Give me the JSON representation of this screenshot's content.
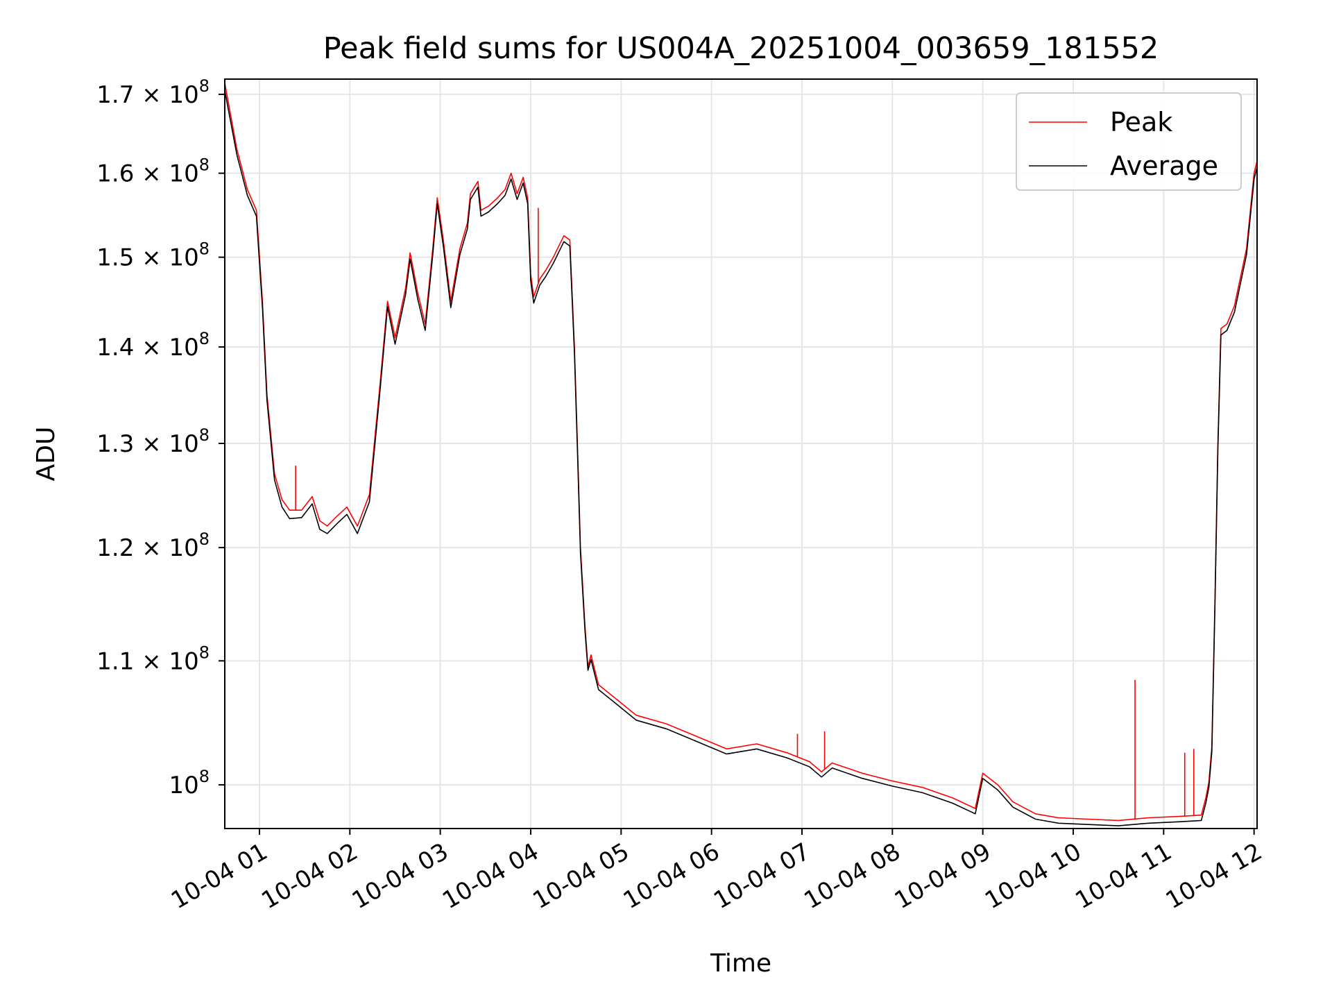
{
  "chart_data": {
    "type": "line",
    "title": "Peak field sums for US004A_20251004_003659_181552",
    "xlabel": "Time",
    "ylabel": "ADU",
    "y_scale": "log",
    "ylim": [
      96700000,
      172000000
    ],
    "xlim": [
      "2025-10-04 00:37",
      "2025-10-04 12:02"
    ],
    "grid": true,
    "legend_position": "top-right",
    "x_ticks": [
      {
        "label": "10-04 01",
        "t": "2025-10-04 01:00"
      },
      {
        "label": "10-04 02",
        "t": "2025-10-04 02:00"
      },
      {
        "label": "10-04 03",
        "t": "2025-10-04 03:00"
      },
      {
        "label": "10-04 04",
        "t": "2025-10-04 04:00"
      },
      {
        "label": "10-04 05",
        "t": "2025-10-04 05:00"
      },
      {
        "label": "10-04 06",
        "t": "2025-10-04 06:00"
      },
      {
        "label": "10-04 07",
        "t": "2025-10-04 07:00"
      },
      {
        "label": "10-04 08",
        "t": "2025-10-04 08:00"
      },
      {
        "label": "10-04 09",
        "t": "2025-10-04 09:00"
      },
      {
        "label": "10-04 10",
        "t": "2025-10-04 10:00"
      },
      {
        "label": "10-04 11",
        "t": "2025-10-04 11:00"
      },
      {
        "label": "10-04 12",
        "t": "2025-10-04 12:00"
      }
    ],
    "y_ticks": [
      {
        "mantissa": "1.7 × 10",
        "exp": "8",
        "value": 170000000
      },
      {
        "mantissa": "1.6 × 10",
        "exp": "8",
        "value": 160000000
      },
      {
        "mantissa": "1.5 × 10",
        "exp": "8",
        "value": 150000000
      },
      {
        "mantissa": "1.4 × 10",
        "exp": "8",
        "value": 140000000
      },
      {
        "mantissa": "1.3 × 10",
        "exp": "8",
        "value": 130000000
      },
      {
        "mantissa": "1.2 × 10",
        "exp": "8",
        "value": 120000000
      },
      {
        "mantissa": "1.1 × 10",
        "exp": "8",
        "value": 110000000
      },
      {
        "mantissa": "10",
        "exp": "8",
        "value": 100000000
      }
    ],
    "series": [
      {
        "name": "Peak",
        "color": "#ff0000",
        "points": [
          [
            "2025-10-04 00:37",
            171500000
          ],
          [
            "2025-10-04 00:45",
            163000000
          ],
          [
            "2025-10-04 00:52",
            158000000
          ],
          [
            "2025-10-04 00:58",
            155500000
          ],
          [
            "2025-10-04 01:02",
            145000000
          ],
          [
            "2025-10-04 01:05",
            135000000
          ],
          [
            "2025-10-04 01:10",
            127000000
          ],
          [
            "2025-10-04 01:15",
            124500000
          ],
          [
            "2025-10-04 01:20",
            123500000
          ],
          [
            "2025-10-04 01:28",
            123500000
          ],
          [
            "2025-10-04 01:35",
            124800000
          ],
          [
            "2025-10-04 01:40",
            122500000
          ],
          [
            "2025-10-04 01:45",
            122000000
          ],
          [
            "2025-10-04 01:52",
            123000000
          ],
          [
            "2025-10-04 01:58",
            123800000
          ],
          [
            "2025-10-04 02:05",
            122000000
          ],
          [
            "2025-10-04 02:13",
            125000000
          ],
          [
            "2025-10-04 02:20",
            136000000
          ],
          [
            "2025-10-04 02:25",
            145000000
          ],
          [
            "2025-10-04 02:30",
            141000000
          ],
          [
            "2025-10-04 02:37",
            146500000
          ],
          [
            "2025-10-04 02:40",
            150500000
          ],
          [
            "2025-10-04 02:45",
            146000000
          ],
          [
            "2025-10-04 02:50",
            142500000
          ],
          [
            "2025-10-04 02:55",
            151000000
          ],
          [
            "2025-10-04 02:58",
            157000000
          ],
          [
            "2025-10-04 03:02",
            152000000
          ],
          [
            "2025-10-04 03:07",
            145000000
          ],
          [
            "2025-10-04 03:13",
            151000000
          ],
          [
            "2025-10-04 03:18",
            154000000
          ],
          [
            "2025-10-04 03:20",
            157500000
          ],
          [
            "2025-10-04 03:25",
            159000000
          ],
          [
            "2025-10-04 03:27",
            155500000
          ],
          [
            "2025-10-04 03:32",
            156000000
          ],
          [
            "2025-10-04 03:38",
            157000000
          ],
          [
            "2025-10-04 03:43",
            158000000
          ],
          [
            "2025-10-04 03:47",
            160000000
          ],
          [
            "2025-10-04 03:51",
            157500000
          ],
          [
            "2025-10-04 03:55",
            159500000
          ],
          [
            "2025-10-04 03:58",
            157000000
          ],
          [
            "2025-10-04 04:00",
            148000000
          ],
          [
            "2025-10-04 04:02",
            145500000
          ],
          [
            "2025-10-04 04:06",
            147500000
          ],
          [
            "2025-10-04 04:10",
            148500000
          ],
          [
            "2025-10-04 04:15",
            150000000
          ],
          [
            "2025-10-04 04:22",
            152500000
          ],
          [
            "2025-10-04 04:26",
            152000000
          ],
          [
            "2025-10-04 04:29",
            140000000
          ],
          [
            "2025-10-04 04:31",
            130000000
          ],
          [
            "2025-10-04 04:33",
            120000000
          ],
          [
            "2025-10-04 04:36",
            113000000
          ],
          [
            "2025-10-04 04:38",
            109500000
          ],
          [
            "2025-10-04 04:40",
            110500000
          ],
          [
            "2025-10-04 04:45",
            108000000
          ],
          [
            "2025-10-04 04:55",
            107000000
          ],
          [
            "2025-10-04 05:10",
            105500000
          ],
          [
            "2025-10-04 05:30",
            104800000
          ],
          [
            "2025-10-04 05:50",
            103800000
          ],
          [
            "2025-10-04 06:10",
            102800000
          ],
          [
            "2025-10-04 06:30",
            103200000
          ],
          [
            "2025-10-04 06:50",
            102500000
          ],
          [
            "2025-10-04 07:05",
            101800000
          ],
          [
            "2025-10-04 07:13",
            101000000
          ],
          [
            "2025-10-04 07:20",
            101700000
          ],
          [
            "2025-10-04 07:40",
            100900000
          ],
          [
            "2025-10-04 08:00",
            100300000
          ],
          [
            "2025-10-04 08:20",
            99800000
          ],
          [
            "2025-10-04 08:40",
            99000000
          ],
          [
            "2025-10-04 08:55",
            98200000
          ],
          [
            "2025-10-04 09:00",
            100900000
          ],
          [
            "2025-10-04 09:10",
            100000000
          ],
          [
            "2025-10-04 09:20",
            98700000
          ],
          [
            "2025-10-04 09:35",
            97800000
          ],
          [
            "2025-10-04 09:50",
            97500000
          ],
          [
            "2025-10-04 10:10",
            97400000
          ],
          [
            "2025-10-04 10:30",
            97300000
          ],
          [
            "2025-10-04 10:50",
            97500000
          ],
          [
            "2025-10-04 11:10",
            97600000
          ],
          [
            "2025-10-04 11:25",
            97700000
          ],
          [
            "2025-10-04 11:28",
            99000000
          ],
          [
            "2025-10-04 11:30",
            100200000
          ],
          [
            "2025-10-04 11:32",
            103000000
          ],
          [
            "2025-10-04 11:34",
            115000000
          ],
          [
            "2025-10-04 11:36",
            130000000
          ],
          [
            "2025-10-04 11:38",
            142000000
          ],
          [
            "2025-10-04 11:42",
            142500000
          ],
          [
            "2025-10-04 11:47",
            144500000
          ],
          [
            "2025-10-04 11:55",
            151000000
          ],
          [
            "2025-10-04 12:00",
            160000000
          ],
          [
            "2025-10-04 12:02",
            161500000
          ]
        ]
      },
      {
        "name": "Average",
        "color": "#000000",
        "points": [
          [
            "2025-10-04 00:37",
            170500000
          ],
          [
            "2025-10-04 00:45",
            162300000
          ],
          [
            "2025-10-04 00:52",
            157300000
          ],
          [
            "2025-10-04 00:58",
            154800000
          ],
          [
            "2025-10-04 01:02",
            144300000
          ],
          [
            "2025-10-04 01:05",
            134400000
          ],
          [
            "2025-10-04 01:10",
            126400000
          ],
          [
            "2025-10-04 01:15",
            123800000
          ],
          [
            "2025-10-04 01:20",
            122700000
          ],
          [
            "2025-10-04 01:28",
            122800000
          ],
          [
            "2025-10-04 01:35",
            124100000
          ],
          [
            "2025-10-04 01:40",
            121700000
          ],
          [
            "2025-10-04 01:45",
            121300000
          ],
          [
            "2025-10-04 01:52",
            122300000
          ],
          [
            "2025-10-04 01:58",
            123100000
          ],
          [
            "2025-10-04 02:05",
            121300000
          ],
          [
            "2025-10-04 02:13",
            124300000
          ],
          [
            "2025-10-04 02:20",
            135300000
          ],
          [
            "2025-10-04 02:25",
            144400000
          ],
          [
            "2025-10-04 02:30",
            140300000
          ],
          [
            "2025-10-04 02:37",
            145800000
          ],
          [
            "2025-10-04 02:40",
            149800000
          ],
          [
            "2025-10-04 02:45",
            145300000
          ],
          [
            "2025-10-04 02:50",
            141800000
          ],
          [
            "2025-10-04 02:55",
            150300000
          ],
          [
            "2025-10-04 02:58",
            156300000
          ],
          [
            "2025-10-04 03:02",
            151300000
          ],
          [
            "2025-10-04 03:07",
            144300000
          ],
          [
            "2025-10-04 03:13",
            150300000
          ],
          [
            "2025-10-04 03:18",
            153300000
          ],
          [
            "2025-10-04 03:20",
            156800000
          ],
          [
            "2025-10-04 03:25",
            158300000
          ],
          [
            "2025-10-04 03:27",
            154800000
          ],
          [
            "2025-10-04 03:32",
            155300000
          ],
          [
            "2025-10-04 03:38",
            156300000
          ],
          [
            "2025-10-04 03:43",
            157300000
          ],
          [
            "2025-10-04 03:47",
            159300000
          ],
          [
            "2025-10-04 03:51",
            156800000
          ],
          [
            "2025-10-04 03:55",
            158800000
          ],
          [
            "2025-10-04 03:58",
            156300000
          ],
          [
            "2025-10-04 04:00",
            147300000
          ],
          [
            "2025-10-04 04:02",
            144800000
          ],
          [
            "2025-10-04 04:06",
            146800000
          ],
          [
            "2025-10-04 04:10",
            147800000
          ],
          [
            "2025-10-04 04:15",
            149300000
          ],
          [
            "2025-10-04 04:22",
            151800000
          ],
          [
            "2025-10-04 04:26",
            151300000
          ],
          [
            "2025-10-04 04:29",
            139400000
          ],
          [
            "2025-10-04 04:31",
            129400000
          ],
          [
            "2025-10-04 04:33",
            119500000
          ],
          [
            "2025-10-04 04:36",
            112600000
          ],
          [
            "2025-10-04 04:38",
            109200000
          ],
          [
            "2025-10-04 04:40",
            110100000
          ],
          [
            "2025-10-04 04:45",
            107600000
          ],
          [
            "2025-10-04 04:55",
            106600000
          ],
          [
            "2025-10-04 05:10",
            105100000
          ],
          [
            "2025-10-04 05:30",
            104400000
          ],
          [
            "2025-10-04 05:50",
            103400000
          ],
          [
            "2025-10-04 06:10",
            102400000
          ],
          [
            "2025-10-04 06:30",
            102800000
          ],
          [
            "2025-10-04 06:50",
            102100000
          ],
          [
            "2025-10-04 07:05",
            101400000
          ],
          [
            "2025-10-04 07:13",
            100600000
          ],
          [
            "2025-10-04 07:20",
            101300000
          ],
          [
            "2025-10-04 07:40",
            100500000
          ],
          [
            "2025-10-04 08:00",
            99900000
          ],
          [
            "2025-10-04 08:20",
            99400000
          ],
          [
            "2025-10-04 08:40",
            98600000
          ],
          [
            "2025-10-04 08:55",
            97800000
          ],
          [
            "2025-10-04 09:00",
            100500000
          ],
          [
            "2025-10-04 09:10",
            99600000
          ],
          [
            "2025-10-04 09:20",
            98300000
          ],
          [
            "2025-10-04 09:35",
            97400000
          ],
          [
            "2025-10-04 09:50",
            97100000
          ],
          [
            "2025-10-04 10:10",
            97000000
          ],
          [
            "2025-10-04 10:30",
            96900000
          ],
          [
            "2025-10-04 10:50",
            97100000
          ],
          [
            "2025-10-04 11:10",
            97200000
          ],
          [
            "2025-10-04 11:25",
            97300000
          ],
          [
            "2025-10-04 11:28",
            98600000
          ],
          [
            "2025-10-04 11:30",
            99800000
          ],
          [
            "2025-10-04 11:32",
            102600000
          ],
          [
            "2025-10-04 11:34",
            114500000
          ],
          [
            "2025-10-04 11:36",
            129400000
          ],
          [
            "2025-10-04 11:38",
            141300000
          ],
          [
            "2025-10-04 11:42",
            141800000
          ],
          [
            "2025-10-04 11:47",
            143800000
          ],
          [
            "2025-10-04 11:55",
            150300000
          ],
          [
            "2025-10-04 12:00",
            159300000
          ],
          [
            "2025-10-04 12:02",
            160800000
          ]
        ]
      }
    ],
    "spikes": [
      {
        "t": "2025-10-04 01:24",
        "value": 127800000
      },
      {
        "t": "2025-10-04 04:05",
        "value": 155800000
      },
      {
        "t": "2025-10-04 06:57",
        "value": 104000000
      },
      {
        "t": "2025-10-04 07:15",
        "value": 104200000
      },
      {
        "t": "2025-10-04 10:41",
        "value": 108400000
      },
      {
        "t": "2025-10-04 11:14",
        "value": 102500000
      },
      {
        "t": "2025-10-04 11:20",
        "value": 102800000
      }
    ]
  }
}
